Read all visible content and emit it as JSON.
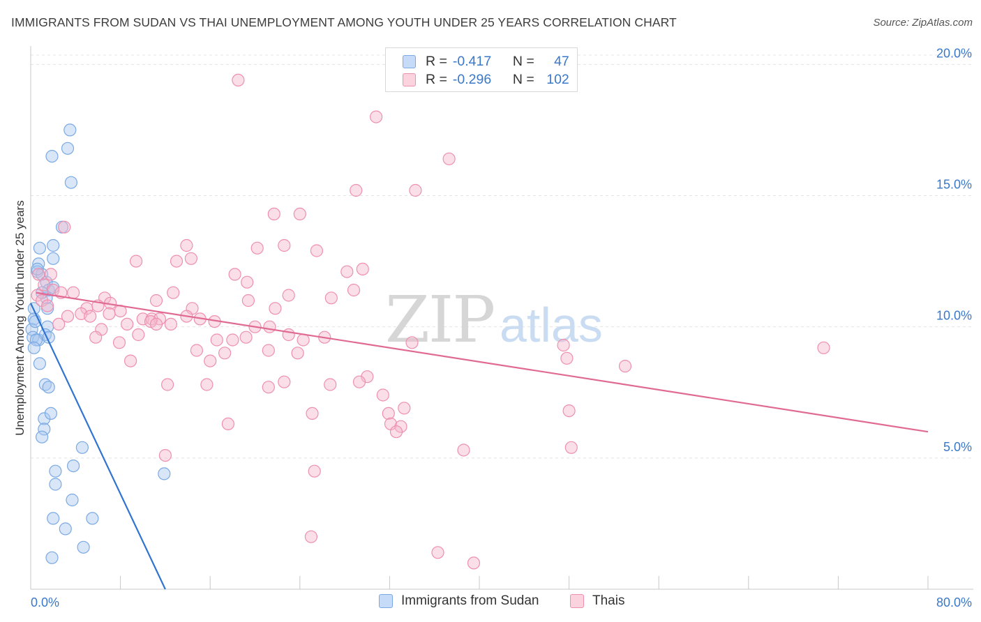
{
  "header": {
    "title": "IMMIGRANTS FROM SUDAN VS THAI UNEMPLOYMENT AMONG YOUTH UNDER 25 YEARS CORRELATION CHART",
    "source": "Source: ZipAtlas.com"
  },
  "watermark": {
    "zip": "ZIP",
    "atlas": "atlas"
  },
  "legend": {
    "r_label": "R =",
    "n_label": "N =",
    "items": [
      {
        "r": "-0.417",
        "n": "47",
        "color": "#a8c8f0"
      },
      {
        "r": "-0.296",
        "n": "102",
        "color": "#f5b8cb"
      }
    ]
  },
  "colors": {
    "sudan": "#7aa9e4",
    "thai": "#ee8fae",
    "sudan_line": "#2f74d0",
    "thai_line": "#e06a93"
  },
  "chart_data": {
    "type": "scatter",
    "title": "IMMIGRANTS FROM SUDAN VS THAI UNEMPLOYMENT AMONG YOUTH UNDER 25 YEARS CORRELATION CHART",
    "xlabel": "",
    "ylabel": "Unemployment Among Youth under 25 years",
    "xlim": [
      0,
      80
    ],
    "ylim": [
      0,
      20.7
    ],
    "x_ticks": [
      "0.0%",
      "80.0%"
    ],
    "y_ticks": [
      {
        "value": 5,
        "label": "5.0%"
      },
      {
        "value": 10,
        "label": "10.0%"
      },
      {
        "value": 15,
        "label": "15.0%"
      },
      {
        "value": 20,
        "label": "20.0%"
      }
    ],
    "grid": true,
    "legend_position": "top-center",
    "series": [
      {
        "name": "Immigrants from Sudan",
        "r": -0.417,
        "n": 47,
        "trend": [
          [
            0.0,
            10.9
          ],
          [
            12.0,
            0.0
          ]
        ],
        "points": [
          [
            3.5,
            17.5
          ],
          [
            3.3,
            16.8
          ],
          [
            1.9,
            16.5
          ],
          [
            3.6,
            15.5
          ],
          [
            2.8,
            13.8
          ],
          [
            0.8,
            13.0
          ],
          [
            2.0,
            13.1
          ],
          [
            0.7,
            12.4
          ],
          [
            2.0,
            12.6
          ],
          [
            0.6,
            12.1
          ],
          [
            1.0,
            12.0
          ],
          [
            1.4,
            11.7
          ],
          [
            1.6,
            11.4
          ],
          [
            1.4,
            11.1
          ],
          [
            0.3,
            10.7
          ],
          [
            0.3,
            10.3
          ],
          [
            1.5,
            10.7
          ],
          [
            0.1,
            9.9
          ],
          [
            0.2,
            9.6
          ],
          [
            1.5,
            10.0
          ],
          [
            0.7,
            9.5
          ],
          [
            1.3,
            9.7
          ],
          [
            0.5,
            9.5
          ],
          [
            0.3,
            9.2
          ],
          [
            0.8,
            8.6
          ],
          [
            1.3,
            7.8
          ],
          [
            1.6,
            7.7
          ],
          [
            1.2,
            6.5
          ],
          [
            1.8,
            6.7
          ],
          [
            1.2,
            6.1
          ],
          [
            1.0,
            5.8
          ],
          [
            4.6,
            5.4
          ],
          [
            3.8,
            4.7
          ],
          [
            2.2,
            4.5
          ],
          [
            2.2,
            4.0
          ],
          [
            3.7,
            3.4
          ],
          [
            2.0,
            2.7
          ],
          [
            5.5,
            2.7
          ],
          [
            3.1,
            2.3
          ],
          [
            4.7,
            1.6
          ],
          [
            1.9,
            1.2
          ],
          [
            11.9,
            4.4
          ],
          [
            2.0,
            11.5
          ],
          [
            0.4,
            10.2
          ],
          [
            1.6,
            9.6
          ],
          [
            0.6,
            12.2
          ],
          [
            1.0,
            11.3
          ]
        ]
      },
      {
        "name": "Thais",
        "r": -0.296,
        "n": 102,
        "trend": [
          [
            0.5,
            11.3
          ],
          [
            80.0,
            6.0
          ]
        ],
        "points": [
          [
            18.5,
            19.4
          ],
          [
            30.8,
            18.0
          ],
          [
            37.3,
            16.4
          ],
          [
            29.0,
            15.2
          ],
          [
            34.3,
            15.2
          ],
          [
            21.7,
            14.3
          ],
          [
            24.0,
            14.3
          ],
          [
            3.0,
            13.8
          ],
          [
            13.9,
            13.1
          ],
          [
            20.2,
            13.0
          ],
          [
            22.6,
            13.1
          ],
          [
            25.5,
            12.9
          ],
          [
            9.4,
            12.5
          ],
          [
            13.0,
            12.5
          ],
          [
            14.3,
            12.6
          ],
          [
            18.2,
            12.0
          ],
          [
            28.2,
            12.1
          ],
          [
            29.6,
            12.2
          ],
          [
            0.7,
            12.0
          ],
          [
            1.8,
            12.0
          ],
          [
            19.3,
            11.7
          ],
          [
            1.2,
            11.6
          ],
          [
            2.0,
            11.4
          ],
          [
            2.7,
            11.3
          ],
          [
            3.8,
            11.3
          ],
          [
            6.6,
            11.1
          ],
          [
            12.7,
            11.3
          ],
          [
            23.0,
            11.2
          ],
          [
            26.8,
            11.1
          ],
          [
            28.8,
            11.4
          ],
          [
            0.6,
            11.2
          ],
          [
            1.0,
            11.0
          ],
          [
            7.1,
            10.9
          ],
          [
            11.2,
            11.0
          ],
          [
            19.4,
            11.0
          ],
          [
            1.5,
            10.8
          ],
          [
            5.0,
            10.7
          ],
          [
            6.0,
            10.8
          ],
          [
            8.0,
            10.6
          ],
          [
            14.4,
            10.7
          ],
          [
            21.8,
            10.7
          ],
          [
            3.3,
            10.4
          ],
          [
            4.5,
            10.5
          ],
          [
            5.3,
            10.4
          ],
          [
            7.0,
            10.5
          ],
          [
            10.0,
            10.3
          ],
          [
            10.8,
            10.3
          ],
          [
            11.5,
            10.3
          ],
          [
            13.9,
            10.4
          ],
          [
            15.1,
            10.3
          ],
          [
            16.4,
            10.2
          ],
          [
            2.5,
            10.1
          ],
          [
            6.3,
            9.9
          ],
          [
            8.6,
            10.1
          ],
          [
            10.7,
            10.2
          ],
          [
            11.2,
            10.1
          ],
          [
            12.5,
            10.1
          ],
          [
            20.0,
            10.0
          ],
          [
            21.3,
            10.0
          ],
          [
            5.8,
            9.6
          ],
          [
            9.6,
            9.7
          ],
          [
            16.6,
            9.5
          ],
          [
            18.0,
            9.5
          ],
          [
            19.2,
            9.6
          ],
          [
            23.0,
            9.7
          ],
          [
            24.3,
            9.5
          ],
          [
            26.2,
            9.6
          ],
          [
            34.0,
            9.4
          ],
          [
            47.5,
            9.3
          ],
          [
            70.7,
            9.2
          ],
          [
            7.9,
            9.4
          ],
          [
            14.8,
            9.1
          ],
          [
            17.3,
            9.0
          ],
          [
            21.2,
            9.1
          ],
          [
            23.8,
            9.0
          ],
          [
            8.9,
            8.7
          ],
          [
            16.0,
            8.7
          ],
          [
            47.8,
            8.8
          ],
          [
            53.0,
            8.5
          ],
          [
            30.0,
            8.1
          ],
          [
            12.2,
            7.8
          ],
          [
            15.7,
            7.8
          ],
          [
            22.6,
            7.9
          ],
          [
            26.7,
            7.8
          ],
          [
            29.3,
            7.9
          ],
          [
            21.2,
            7.7
          ],
          [
            31.4,
            7.4
          ],
          [
            33.3,
            6.9
          ],
          [
            25.1,
            6.7
          ],
          [
            31.9,
            6.7
          ],
          [
            48.0,
            6.8
          ],
          [
            17.6,
            6.3
          ],
          [
            32.1,
            6.3
          ],
          [
            33.0,
            6.2
          ],
          [
            32.6,
            6.0
          ],
          [
            12.0,
            5.1
          ],
          [
            38.6,
            5.3
          ],
          [
            48.2,
            5.4
          ],
          [
            25.3,
            4.5
          ],
          [
            25.0,
            2.0
          ],
          [
            36.3,
            1.4
          ],
          [
            39.5,
            1.0
          ]
        ]
      }
    ]
  },
  "bottom_legend": {
    "items": [
      {
        "label": "Immigrants from Sudan",
        "color": "#a8c8f0"
      },
      {
        "label": "Thais",
        "color": "#f5b8cb"
      }
    ]
  }
}
